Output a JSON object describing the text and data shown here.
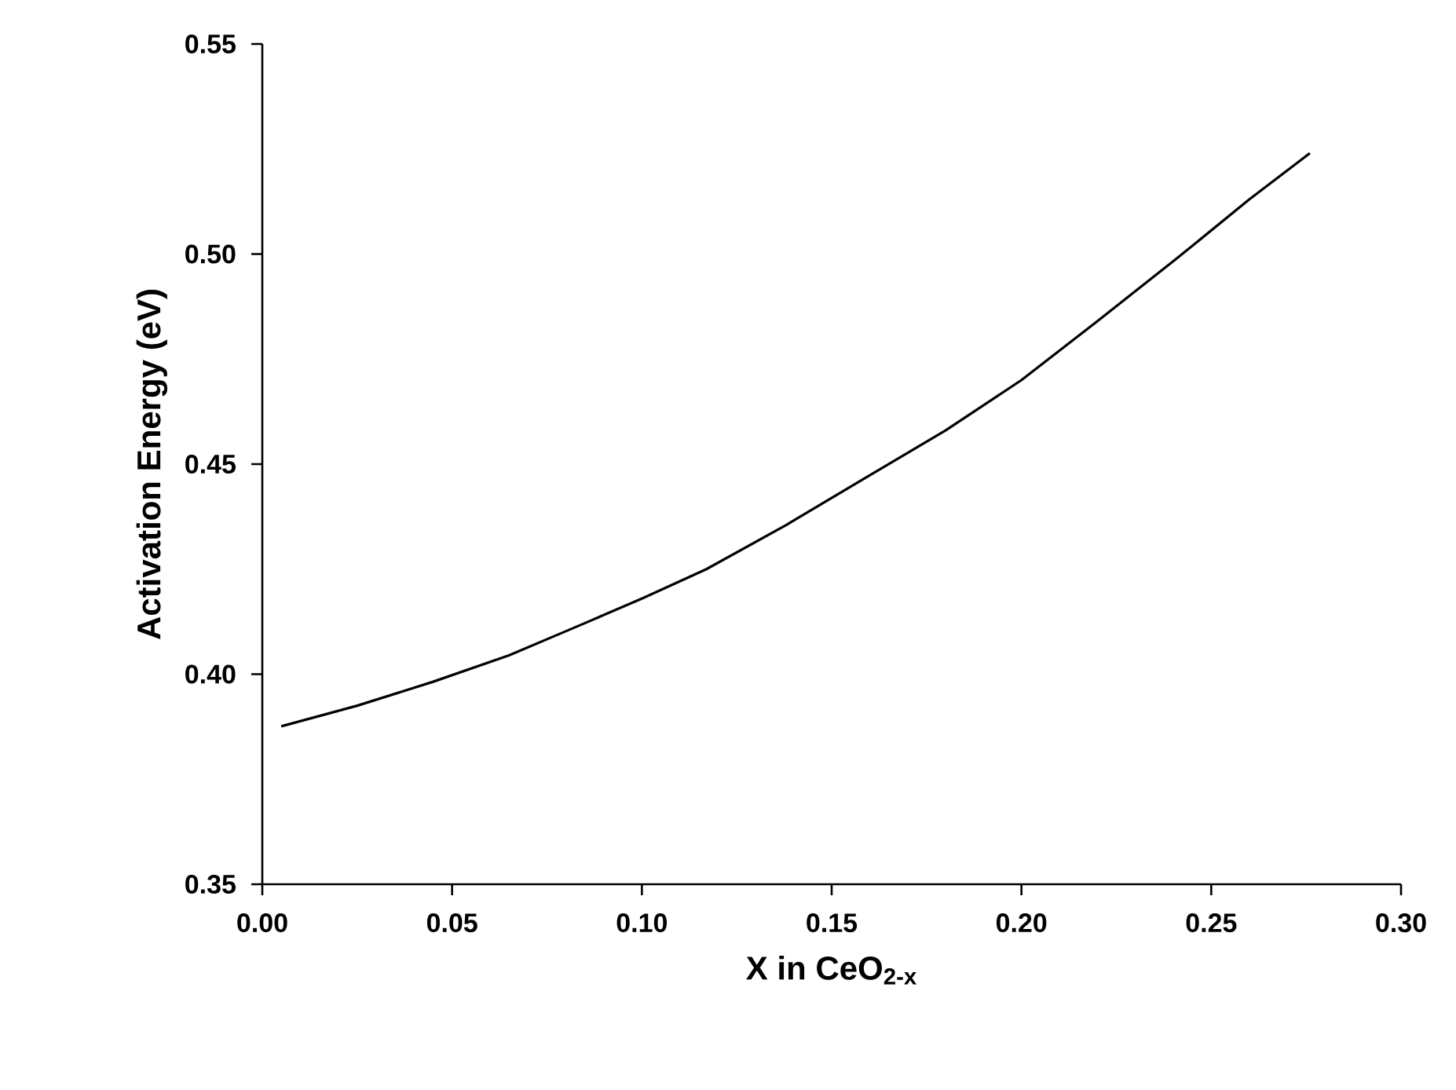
{
  "chart_data": {
    "type": "line",
    "xlabel": "X in CeO$_{2-x}$",
    "ylabel": "Activation Energy (eV)",
    "x": [
      0.005,
      0.025,
      0.045,
      0.065,
      0.082,
      0.1,
      0.117,
      0.138,
      0.1585,
      0.18,
      0.2,
      0.22,
      0.241,
      0.26,
      0.276
    ],
    "series": [
      {
        "color": "#000000",
        "values": [
          0.3876,
          0.3925,
          0.3982,
          0.4045,
          0.411,
          0.418,
          0.425,
          0.4355,
          0.4465,
          0.458,
          0.47,
          0.484,
          0.499,
          0.513,
          0.524
        ]
      }
    ],
    "xlim": [
      0,
      0.3
    ],
    "ylim": [
      0.35,
      0.55
    ],
    "xticks": [
      {
        "value": 0,
        "label": "0.00"
      },
      0.05,
      {
        "value": 0.1,
        "label": "0.10"
      },
      0.15,
      {
        "value": 0.2,
        "label": "0.20"
      },
      0.25,
      {
        "value": 0.3,
        "label": "0.30"
      }
    ],
    "yticks": [
      0.35,
      {
        "value": 0.4,
        "label": "0.40"
      },
      0.45,
      {
        "value": 0.5,
        "label": "0.50"
      },
      0.55
    ],
    "marker": "none",
    "line_style": "solid"
  }
}
